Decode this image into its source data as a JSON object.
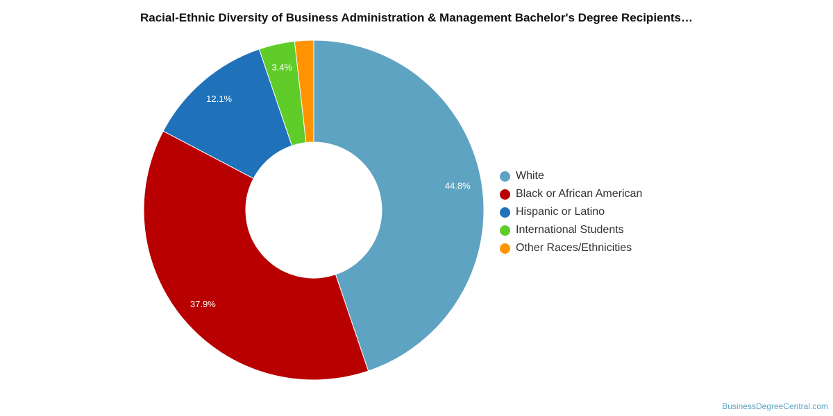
{
  "chart_data": {
    "type": "pie",
    "variant": "donut",
    "title": "Racial-Ethnic Diversity of Business Administration & Management Bachelor's Degree Recipients…",
    "categories": [
      "White",
      "Black or African American",
      "Hispanic or Latino",
      "International Students",
      "Other Races/Ethnicities"
    ],
    "values": [
      44.8,
      37.9,
      12.1,
      3.4,
      1.8
    ],
    "data_labels": [
      "44.8%",
      "37.9%",
      "12.1%",
      "3.4%",
      ""
    ],
    "colors": [
      "#5ea3c1",
      "#b80000",
      "#1f72b9",
      "#5fcc29",
      "#ff9400"
    ],
    "legend_position": "right"
  },
  "source": {
    "text": "BusinessDegreeCentral.com"
  }
}
